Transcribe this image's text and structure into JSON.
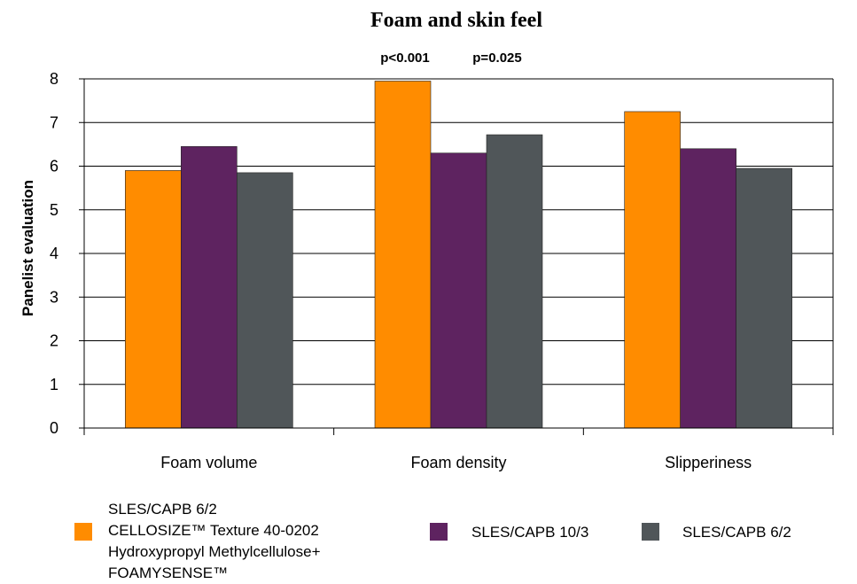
{
  "chart_data": {
    "type": "bar",
    "title": "Foam and skin feel",
    "ylabel": "Panelist evaluation",
    "xlabel": "",
    "ylim": [
      0,
      8
    ],
    "yticks": [
      0,
      1,
      2,
      3,
      4,
      5,
      6,
      7,
      8
    ],
    "grid": true,
    "legend_position": "bottom",
    "categories": [
      "Foam volume",
      "Foam density",
      "Slipperiness"
    ],
    "series": [
      {
        "name": "SLES/CAPB 6/2\nCELLOSIZE™ Texture 40-0202\nHydroxypropyl Methylcellulose+\nFOAMYSENSE™",
        "color": "#ff8c00",
        "values": [
          5.9,
          7.95,
          7.25
        ]
      },
      {
        "name": "SLES/CAPB 10/3",
        "color": "#5e2360",
        "values": [
          6.45,
          6.3,
          6.4
        ]
      },
      {
        "name": "SLES/CAPB 6/2",
        "color": "#505659",
        "values": [
          5.85,
          6.72,
          5.95
        ]
      }
    ],
    "annotations": [
      "p<0.001",
      "p=0.025"
    ]
  }
}
